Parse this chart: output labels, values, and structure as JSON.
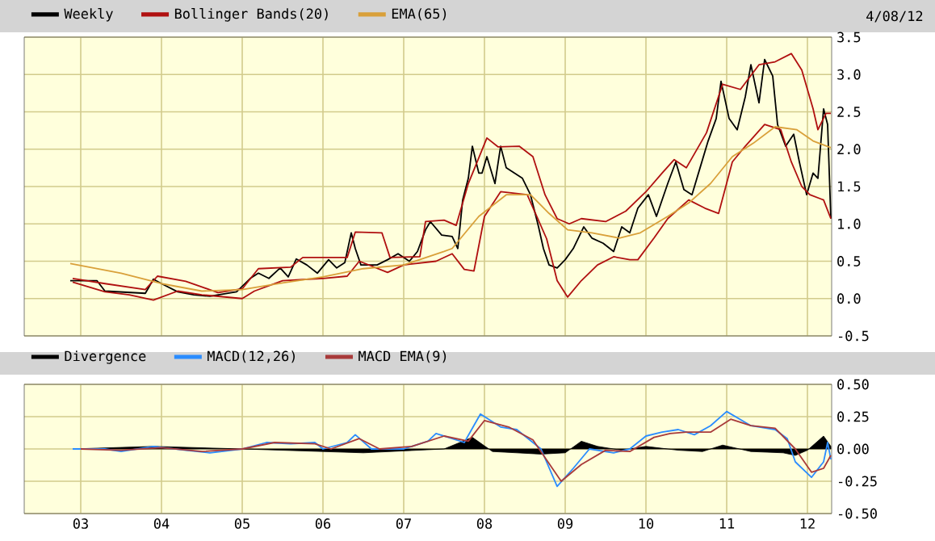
{
  "chart_data": [
    {
      "type": "line",
      "grid": true,
      "legend": "top",
      "tick_labels": "y",
      "annotations": [
        "4/08/12"
      ],
      "xlim": [
        2002.3,
        2012.3
      ],
      "xticks": [
        2003,
        2004,
        2005,
        2006,
        2007,
        2008,
        2009,
        2010,
        2011,
        2012
      ],
      "ylim": [
        -0.5,
        3.5
      ],
      "yticks": [
        -0.5,
        {
          "value": 0,
          "label": "0.0"
        },
        0.5,
        {
          "value": 1,
          "label": "1.0"
        },
        1.5,
        {
          "value": 2,
          "label": "2.0"
        },
        2.5,
        {
          "value": 3,
          "label": "3.0"
        },
        3.5
      ],
      "series": [
        {
          "name": "Weekly",
          "color": "#000000",
          "x": [
            2002.87,
            2003.2,
            2003.3,
            2003.8,
            2003.9,
            2004.0,
            2004.2,
            2004.4,
            2004.6,
            2004.93,
            2005.1,
            2005.2,
            2005.33,
            2005.47,
            2005.57,
            2005.67,
            2005.8,
            2005.93,
            2006.07,
            2006.17,
            2006.27,
            2006.35,
            2006.4,
            2006.47,
            2006.67,
            2006.8,
            2006.93,
            2007.07,
            2007.17,
            2007.27,
            2007.33,
            2007.47,
            2007.6,
            2007.67,
            2007.73,
            2007.8,
            2007.85,
            2007.93,
            2007.97,
            2008.03,
            2008.13,
            2008.2,
            2008.27,
            2008.37,
            2008.47,
            2008.57,
            2008.67,
            2008.73,
            2008.8,
            2008.9,
            2009.0,
            2009.1,
            2009.23,
            2009.33,
            2009.47,
            2009.6,
            2009.7,
            2009.8,
            2009.9,
            2010.03,
            2010.13,
            2010.27,
            2010.37,
            2010.47,
            2010.57,
            2010.67,
            2010.77,
            2010.87,
            2010.93,
            2011.03,
            2011.13,
            2011.23,
            2011.3,
            2011.4,
            2011.47,
            2011.57,
            2011.63,
            2011.73,
            2011.83,
            2011.9,
            2011.99,
            2012.07,
            2012.13,
            2012.2,
            2012.25,
            2012.29
          ],
          "values": [
            0.24,
            0.24,
            0.1,
            0.07,
            0.26,
            0.2,
            0.09,
            0.05,
            0.03,
            0.09,
            0.27,
            0.34,
            0.27,
            0.41,
            0.29,
            0.53,
            0.45,
            0.34,
            0.52,
            0.41,
            0.48,
            0.88,
            0.67,
            0.45,
            0.45,
            0.52,
            0.6,
            0.5,
            0.63,
            0.92,
            1.03,
            0.85,
            0.83,
            0.67,
            1.32,
            1.61,
            2.04,
            1.68,
            1.68,
            1.9,
            1.54,
            2.04,
            1.75,
            1.68,
            1.61,
            1.39,
            0.96,
            0.67,
            0.45,
            0.41,
            0.52,
            0.67,
            0.96,
            0.81,
            0.74,
            0.63,
            0.96,
            0.88,
            1.21,
            1.39,
            1.1,
            1.54,
            1.83,
            1.46,
            1.39,
            1.75,
            2.11,
            2.41,
            2.91,
            2.41,
            2.26,
            2.7,
            3.13,
            2.62,
            3.2,
            2.98,
            2.33,
            2.04,
            2.2,
            1.83,
            1.39,
            1.68,
            1.61,
            2.54,
            2.33,
            1.07
          ]
        },
        {
          "name": "Bollinger Bands(20)",
          "color": "#b01010",
          "x": [
            2002.9,
            2003.3,
            2003.8,
            2003.95,
            2004.3,
            2004.7,
            2005.0,
            2005.2,
            2005.6,
            2005.75,
            2006.1,
            2006.3,
            2006.4,
            2006.73,
            2006.83,
            2007.2,
            2007.27,
            2007.5,
            2007.65,
            2007.8,
            2008.03,
            2008.17,
            2008.43,
            2008.6,
            2008.75,
            2008.9,
            2009.05,
            2009.2,
            2009.5,
            2009.75,
            2010.0,
            2010.2,
            2010.35,
            2010.5,
            2010.75,
            2010.95,
            2011.17,
            2011.4,
            2011.6,
            2011.8,
            2011.93,
            2012.07,
            2012.13,
            2012.23,
            2012.29
          ],
          "values": [
            0.27,
            0.2,
            0.12,
            0.3,
            0.23,
            0.08,
            0.13,
            0.4,
            0.42,
            0.55,
            0.55,
            0.55,
            0.89,
            0.88,
            0.55,
            0.56,
            1.03,
            1.05,
            0.98,
            1.54,
            2.15,
            2.03,
            2.04,
            1.9,
            1.39,
            1.07,
            1.0,
            1.07,
            1.03,
            1.17,
            1.43,
            1.68,
            1.86,
            1.75,
            2.22,
            2.87,
            2.8,
            3.13,
            3.17,
            3.28,
            3.06,
            2.54,
            2.26,
            2.48,
            2.48
          ]
        },
        {
          "color": "#b01010",
          "x": [
            2002.9,
            2003.3,
            2003.6,
            2003.9,
            2004.2,
            2004.5,
            2005.0,
            2005.15,
            2005.5,
            2006.0,
            2006.3,
            2006.45,
            2006.8,
            2007.0,
            2007.4,
            2007.6,
            2007.75,
            2007.87,
            2008.0,
            2008.2,
            2008.53,
            2008.77,
            2008.9,
            2009.03,
            2009.2,
            2009.4,
            2009.6,
            2009.8,
            2009.9,
            2010.1,
            2010.27,
            2010.53,
            2010.73,
            2010.9,
            2011.07,
            2011.23,
            2011.47,
            2011.67,
            2011.8,
            2011.93,
            2012.03,
            2012.2,
            2012.29
          ],
          "values": [
            0.22,
            0.09,
            0.05,
            -0.02,
            0.1,
            0.05,
            0.0,
            0.1,
            0.24,
            0.27,
            0.3,
            0.5,
            0.35,
            0.45,
            0.5,
            0.6,
            0.39,
            0.37,
            1.1,
            1.43,
            1.39,
            0.8,
            0.24,
            0.02,
            0.24,
            0.45,
            0.56,
            0.52,
            0.52,
            0.81,
            1.07,
            1.32,
            1.21,
            1.14,
            1.83,
            2.04,
            2.33,
            2.26,
            1.83,
            1.5,
            1.39,
            1.32,
            1.07
          ]
        },
        {
          "name": "EMA(65)",
          "color": "#d9a03a",
          "x": [
            2002.87,
            2003.5,
            2004.0,
            2004.5,
            2005.0,
            2005.5,
            2006.0,
            2006.5,
            2007.0,
            2007.5,
            2007.6,
            2007.93,
            2008.27,
            2008.57,
            2008.8,
            2009.03,
            2009.33,
            2009.67,
            2009.93,
            2010.27,
            2010.53,
            2010.8,
            2011.07,
            2011.33,
            2011.6,
            2011.87,
            2012.07,
            2012.29
          ],
          "values": [
            0.47,
            0.34,
            0.2,
            0.1,
            0.12,
            0.21,
            0.29,
            0.4,
            0.45,
            0.63,
            0.67,
            1.1,
            1.39,
            1.39,
            1.14,
            0.92,
            0.88,
            0.81,
            0.88,
            1.1,
            1.28,
            1.54,
            1.9,
            2.08,
            2.3,
            2.26,
            2.11,
            2.02
          ]
        }
      ]
    },
    {
      "type": "line",
      "grid": true,
      "legend": "top",
      "xlim": [
        2002.3,
        2012.3
      ],
      "xticks": [
        {
          "value": 2003,
          "label": "03"
        },
        {
          "value": 2004,
          "label": "04"
        },
        {
          "value": 2005,
          "label": "05"
        },
        {
          "value": 2006,
          "label": "06"
        },
        {
          "value": 2007,
          "label": "07"
        },
        {
          "value": 2008,
          "label": "08"
        },
        {
          "value": 2009,
          "label": "09"
        },
        {
          "value": 2010,
          "label": "10"
        },
        {
          "value": 2011,
          "label": "11"
        },
        {
          "value": 2012,
          "label": "12"
        }
      ],
      "ylim": [
        -0.5,
        0.5
      ],
      "yticks": [
        {
          "value": -0.5,
          "label": "-0.50"
        },
        {
          "value": -0.25,
          "label": "-0.25"
        },
        {
          "value": 0,
          "label": "0.00"
        },
        {
          "value": 0.25,
          "label": "0.25"
        },
        {
          "value": 0.5,
          "label": "0.50"
        }
      ],
      "series": [
        {
          "name": "Divergence",
          "type": "area",
          "color": "#000000",
          "x": [
            2002.9,
            2003.9,
            2005.0,
            2006.5,
            2007.5,
            2007.85,
            2008.1,
            2008.4,
            2008.7,
            2009.0,
            2009.2,
            2009.4,
            2009.7,
            2010.0,
            2010.4,
            2010.7,
            2010.95,
            2011.3,
            2011.7,
            2011.85,
            2012.0,
            2012.2,
            2012.29
          ],
          "values": [
            0.0,
            0.02,
            0.0,
            -0.03,
            0.0,
            0.09,
            -0.02,
            -0.03,
            -0.04,
            -0.03,
            0.06,
            0.02,
            -0.01,
            0.02,
            -0.01,
            -0.02,
            0.03,
            -0.02,
            -0.03,
            -0.05,
            -0.01,
            0.1,
            0.02
          ]
        },
        {
          "name": "MACD(12,26)",
          "color": "#2a8cff",
          "x": [
            2002.9,
            2003.3,
            2003.5,
            2003.9,
            2004.3,
            2004.6,
            2005.0,
            2005.3,
            2005.6,
            2005.9,
            2006.0,
            2006.3,
            2006.4,
            2006.6,
            2007.0,
            2007.3,
            2007.4,
            2007.6,
            2007.75,
            2007.95,
            2008.2,
            2008.4,
            2008.7,
            2008.9,
            2009.1,
            2009.3,
            2009.6,
            2009.8,
            2010.0,
            2010.2,
            2010.4,
            2010.6,
            2010.8,
            2011.0,
            2011.3,
            2011.6,
            2011.75,
            2011.85,
            2012.05,
            2012.2,
            2012.25,
            2012.29
          ],
          "values": [
            0.0,
            0.0,
            -0.02,
            0.02,
            -0.01,
            -0.03,
            0.0,
            0.05,
            0.04,
            0.05,
            0.0,
            0.05,
            0.11,
            0.0,
            0.0,
            0.06,
            0.12,
            0.08,
            0.05,
            0.27,
            0.17,
            0.15,
            0.0,
            -0.29,
            -0.15,
            0.0,
            -0.03,
            0.0,
            0.1,
            0.13,
            0.15,
            0.11,
            0.18,
            0.29,
            0.18,
            0.15,
            0.08,
            -0.1,
            -0.22,
            -0.1,
            0.05,
            -0.08
          ]
        },
        {
          "name": "MACD EMA(9)",
          "color": "#a83a3a",
          "x": [
            2003.0,
            2003.5,
            2004.0,
            2004.5,
            2005.0,
            2005.4,
            2005.9,
            2006.1,
            2006.45,
            2006.7,
            2007.1,
            2007.5,
            2007.8,
            2008.0,
            2008.3,
            2008.6,
            2008.95,
            2009.2,
            2009.5,
            2009.8,
            2010.1,
            2010.3,
            2010.5,
            2010.8,
            2011.05,
            2011.3,
            2011.6,
            2011.85,
            2012.05,
            2012.2,
            2012.29
          ],
          "values": [
            0.0,
            -0.01,
            0.01,
            -0.02,
            0.0,
            0.05,
            0.04,
            0.0,
            0.08,
            0.0,
            0.02,
            0.1,
            0.06,
            0.22,
            0.17,
            0.07,
            -0.25,
            -0.12,
            -0.01,
            -0.02,
            0.09,
            0.12,
            0.13,
            0.13,
            0.23,
            0.18,
            0.16,
            0.0,
            -0.18,
            -0.15,
            -0.05
          ]
        }
      ]
    }
  ]
}
